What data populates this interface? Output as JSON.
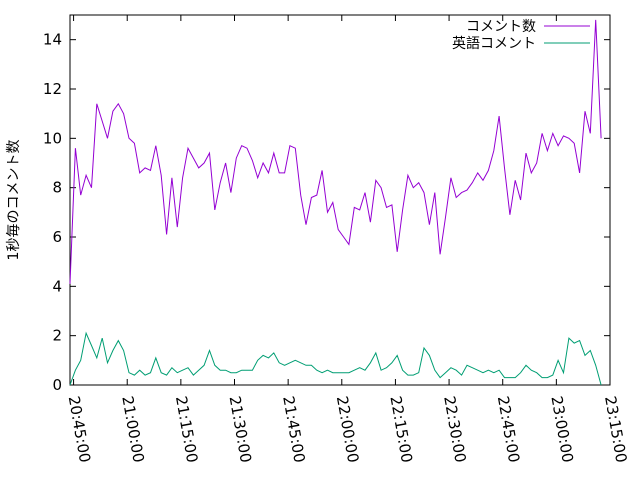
{
  "chart_data": {
    "type": "line",
    "title": "",
    "xlabel": "",
    "ylabel": "1秒毎のコメント数",
    "xlim": [
      "20:44:00",
      "23:15:00"
    ],
    "ylim": [
      0,
      15
    ],
    "x_ticks": [
      "20:45:00",
      "21:00:00",
      "21:15:00",
      "21:30:00",
      "21:45:00",
      "22:00:00",
      "22:15:00",
      "22:30:00",
      "22:45:00",
      "23:00:00",
      "23:15:00"
    ],
    "y_ticks": [
      0,
      2,
      4,
      6,
      8,
      10,
      12,
      14
    ],
    "grid": false,
    "legend_position": "top-right",
    "sample_start": "20:44:00",
    "sample_interval_seconds": 90,
    "series": [
      {
        "name": "コメント数",
        "color": "#9400d3",
        "values": [
          4.1,
          9.6,
          7.7,
          8.5,
          8.0,
          11.4,
          10.7,
          10.0,
          11.1,
          11.4,
          11.0,
          10.0,
          9.8,
          8.6,
          8.8,
          8.7,
          9.7,
          8.5,
          6.1,
          8.4,
          6.4,
          8.4,
          9.6,
          9.2,
          8.8,
          9.0,
          9.4,
          7.1,
          8.2,
          9.0,
          7.8,
          9.2,
          9.7,
          9.6,
          9.1,
          8.4,
          9.0,
          8.6,
          9.4,
          8.6,
          8.6,
          9.7,
          9.6,
          7.7,
          6.5,
          7.6,
          7.7,
          8.7,
          7.0,
          7.4,
          6.3,
          6.0,
          5.7,
          7.2,
          7.1,
          7.8,
          6.6,
          8.3,
          8.0,
          7.2,
          7.3,
          5.4,
          7.1,
          8.5,
          8.0,
          8.2,
          7.8,
          6.5,
          7.8,
          5.3,
          6.8,
          8.4,
          7.6,
          7.8,
          7.9,
          8.2,
          8.6,
          8.3,
          8.7,
          9.5,
          10.9,
          8.8,
          6.9,
          8.3,
          7.5,
          9.4,
          8.6,
          9.0,
          10.2,
          9.5,
          10.2,
          9.7,
          10.1,
          10.0,
          9.8,
          8.6,
          11.1,
          10.2,
          14.8,
          10.0
        ]
      },
      {
        "name": "英語コメント",
        "color": "#009e73",
        "values": [
          0.0,
          0.6,
          1.0,
          2.1,
          1.6,
          1.1,
          1.9,
          0.9,
          1.4,
          1.8,
          1.4,
          0.5,
          0.4,
          0.6,
          0.4,
          0.5,
          1.1,
          0.5,
          0.4,
          0.7,
          0.5,
          0.6,
          0.7,
          0.4,
          0.6,
          0.8,
          1.4,
          0.8,
          0.6,
          0.6,
          0.5,
          0.5,
          0.6,
          0.6,
          0.6,
          1.0,
          1.2,
          1.1,
          1.3,
          0.9,
          0.8,
          0.9,
          1.0,
          0.9,
          0.8,
          0.8,
          0.6,
          0.5,
          0.6,
          0.5,
          0.5,
          0.5,
          0.5,
          0.6,
          0.7,
          0.6,
          0.9,
          1.3,
          0.6,
          0.7,
          0.9,
          1.2,
          0.6,
          0.4,
          0.4,
          0.5,
          1.5,
          1.2,
          0.6,
          0.3,
          0.5,
          0.7,
          0.6,
          0.4,
          0.8,
          0.7,
          0.6,
          0.5,
          0.6,
          0.5,
          0.6,
          0.3,
          0.3,
          0.3,
          0.5,
          0.8,
          0.6,
          0.5,
          0.3,
          0.3,
          0.4,
          1.0,
          0.5,
          1.9,
          1.7,
          1.8,
          1.2,
          1.4,
          0.8,
          0.0
        ]
      }
    ]
  }
}
